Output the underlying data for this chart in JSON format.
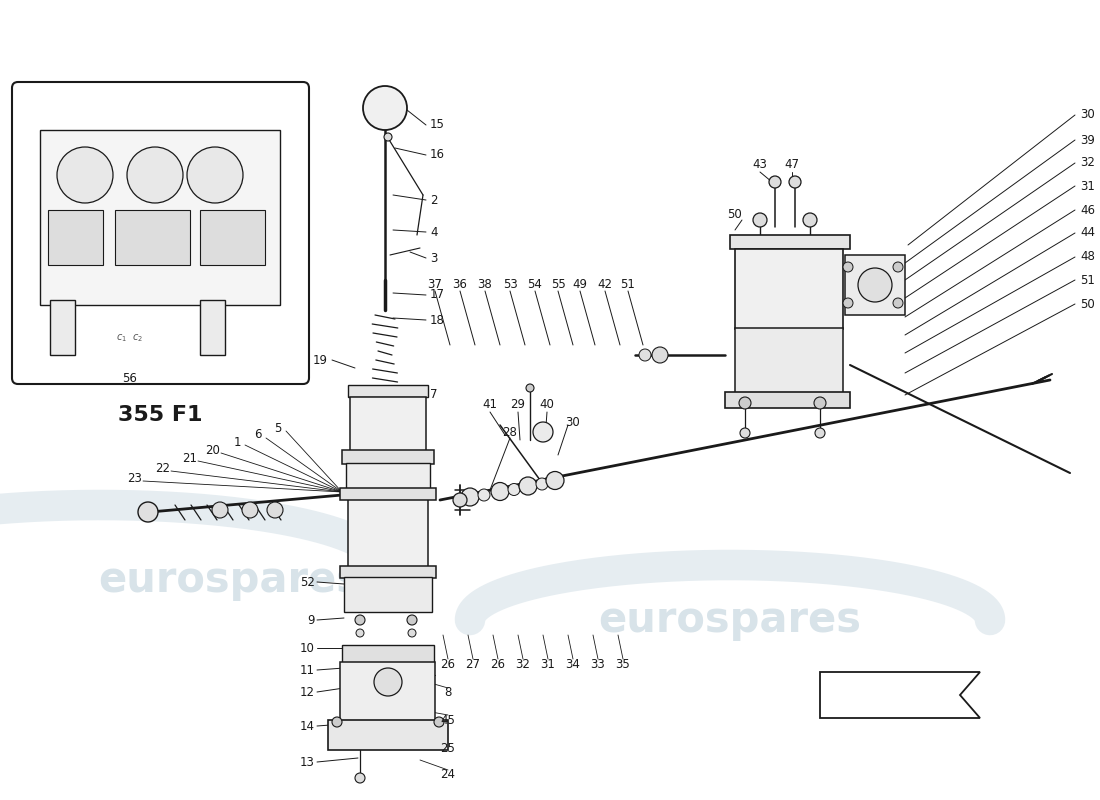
{
  "bg_color": "#ffffff",
  "line_color": "#1a1a1a",
  "fig_width": 11.0,
  "fig_height": 8.0,
  "dpi": 100,
  "inset_title": "355 F1",
  "watermark1": "eurospares",
  "watermark2": "eurospares",
  "wm_color": "#b8ccd8"
}
